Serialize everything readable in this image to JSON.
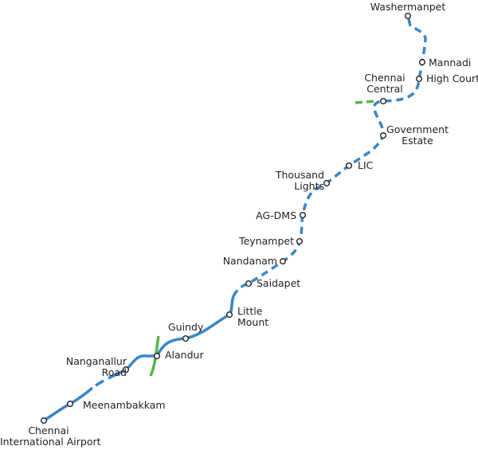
{
  "colors": {
    "blue_line": "#3a86c8",
    "green_line": "#5ab44b",
    "station_fill": "#ffffff",
    "station_stroke": "#222222"
  },
  "stations": [
    {
      "id": "washermanpet",
      "name": "Washermanpet"
    },
    {
      "id": "mannadi",
      "name": "Mannadi"
    },
    {
      "id": "high-court",
      "name": "High Court"
    },
    {
      "id": "chennai-central",
      "name": "Chennai\nCentral",
      "line1": "Chennai",
      "line2": "Central"
    },
    {
      "id": "government-estate",
      "name": "Government Estate",
      "line1": "Government",
      "line2": "Estate"
    },
    {
      "id": "lic",
      "name": "LIC"
    },
    {
      "id": "thousand-lights",
      "name": "Thousand Lights",
      "line1": "Thousand",
      "line2": "Lights"
    },
    {
      "id": "ag-dms",
      "name": "AG-DMS"
    },
    {
      "id": "teynampet",
      "name": "Teynampet"
    },
    {
      "id": "nandanam",
      "name": "Nandanam"
    },
    {
      "id": "saidapet",
      "name": "Saidapet"
    },
    {
      "id": "little-mount",
      "name": "Little Mount",
      "line1": "Little",
      "line2": "Mount"
    },
    {
      "id": "guindy",
      "name": "Guindy"
    },
    {
      "id": "alandur",
      "name": "Alandur"
    },
    {
      "id": "nanganallur-road",
      "name": "Nanganallur Road",
      "line1": "Nanganallur",
      "line2": "Road"
    },
    {
      "id": "meenambakkam",
      "name": "Meenambakkam"
    },
    {
      "id": "chennai-international-airport",
      "name": "Chennai International Airport",
      "line1": "Chennai",
      "line2": "International Airport"
    }
  ]
}
